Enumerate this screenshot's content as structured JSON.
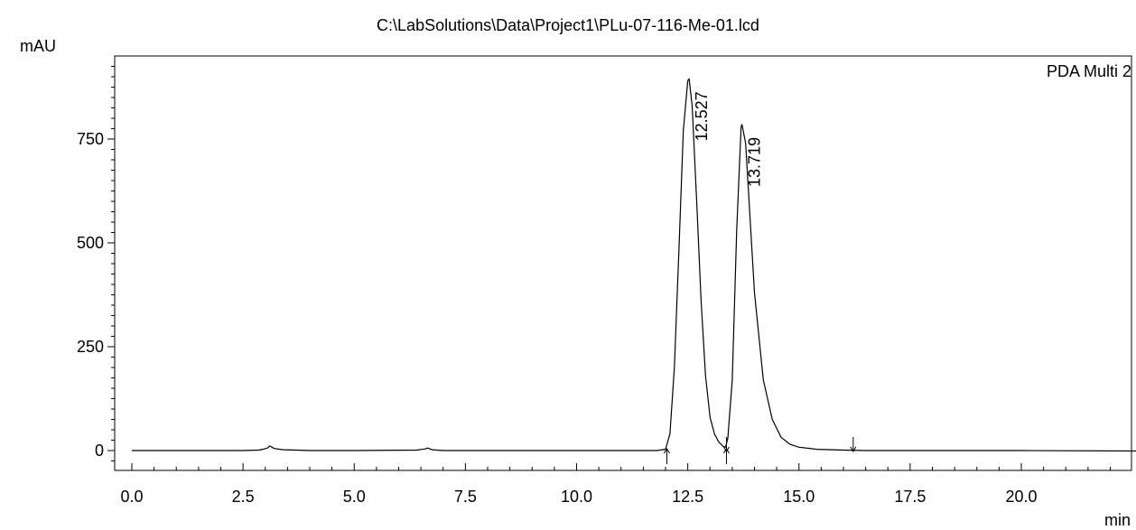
{
  "chart_data": {
    "type": "line",
    "title": "C:\\LabSolutions\\Data\\Project1\\PLu-07-116-Me-01.lcd",
    "ylabel": "mAU",
    "xlabel": "min",
    "legend": "PDA Multi 2",
    "legend_position": "top-right",
    "grid": false,
    "xlim": [
      0.0,
      22.6
    ],
    "ylim": [
      -48,
      955
    ],
    "x_ticks": [
      {
        "value": 0.0,
        "label": "0.0"
      },
      {
        "value": 2.5,
        "label": "2.5"
      },
      {
        "value": 5.0,
        "label": "5.0"
      },
      {
        "value": 7.5,
        "label": "7.5"
      },
      {
        "value": 10.0,
        "label": "10.0"
      },
      {
        "value": 12.5,
        "label": "12.5"
      },
      {
        "value": 15.0,
        "label": "15.0"
      },
      {
        "value": 17.5,
        "label": "17.5"
      },
      {
        "value": 20.0,
        "label": "20.0"
      }
    ],
    "y_ticks": [
      {
        "value": 0,
        "label": "0"
      },
      {
        "value": 250,
        "label": "250"
      },
      {
        "value": 500,
        "label": "500"
      },
      {
        "value": 750,
        "label": "750"
      }
    ],
    "series": [
      {
        "color": "#000000",
        "x": [
          0.0,
          2.5,
          2.85,
          2.95,
          3.05,
          3.1,
          3.2,
          3.4,
          3.7,
          4.0,
          5.0,
          6.4,
          6.6,
          6.65,
          6.75,
          7.0,
          8.0,
          10.0,
          11.8,
          12.0,
          12.1,
          12.2,
          12.3,
          12.4,
          12.5,
          12.53,
          12.6,
          12.7,
          12.8,
          12.9,
          13.0,
          13.1,
          13.2,
          13.3,
          13.35,
          13.4,
          13.5,
          13.6,
          13.7,
          13.72,
          13.8,
          13.9,
          14.0,
          14.2,
          14.4,
          14.6,
          14.8,
          15.0,
          15.4,
          16.0,
          16.5,
          18.0,
          20.0,
          22.6
        ],
        "y": [
          0,
          0,
          1,
          3,
          6,
          11,
          5,
          2,
          1,
          0,
          0,
          1,
          4,
          6,
          2,
          0,
          0,
          0,
          0,
          3,
          40,
          200,
          480,
          770,
          890,
          895,
          830,
          600,
          360,
          180,
          80,
          40,
          20,
          10,
          8,
          30,
          170,
          530,
          780,
          785,
          740,
          560,
          380,
          170,
          75,
          32,
          15,
          8,
          3,
          1,
          0,
          0,
          0,
          -1
        ]
      }
    ],
    "peaks": [
      {
        "x": 12.527,
        "y": 895,
        "label": "12.527"
      },
      {
        "x": 13.719,
        "y": 785,
        "label": "13.719"
      }
    ],
    "integration_marks": [
      {
        "x": 12.03,
        "dir": "up"
      },
      {
        "x": 13.37,
        "dir": "up"
      },
      {
        "x": 13.37,
        "dir": "down"
      },
      {
        "x": 16.22,
        "dir": "down"
      }
    ]
  }
}
